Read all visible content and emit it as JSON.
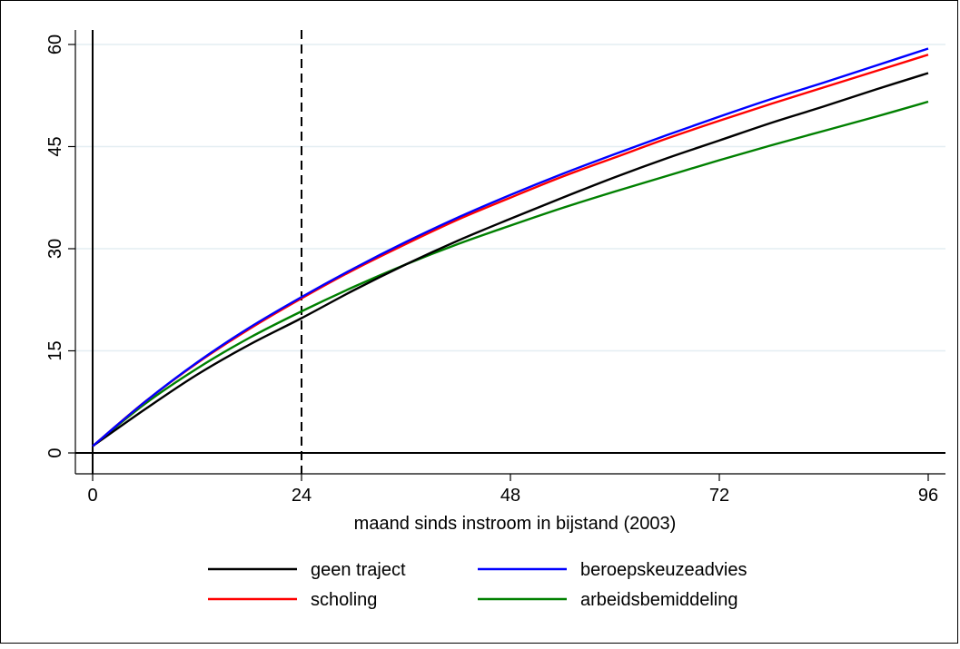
{
  "chart_data": {
    "type": "line",
    "title": "",
    "xlabel": "maand sinds instroom in bijstand (2003)",
    "ylabel": "",
    "xlim": [
      0,
      96
    ],
    "ylim": [
      0,
      60
    ],
    "x_ticks": [
      "0",
      "24",
      "48",
      "72",
      "96"
    ],
    "y_ticks": [
      "0",
      "15",
      "30",
      "45",
      "60"
    ],
    "grid": "horizontal",
    "legend_position": "bottom",
    "reference_lines": [
      {
        "axis": "x",
        "value": 24,
        "style": "dashed"
      }
    ],
    "x": [
      0,
      6,
      12,
      18,
      24,
      30,
      36,
      42,
      48,
      54,
      60,
      66,
      72,
      78,
      84,
      90,
      96
    ],
    "series": [
      {
        "name": "geen traject",
        "color": "#000000",
        "values": [
          1.0,
          6.4,
          11.5,
          15.9,
          19.8,
          23.9,
          27.7,
          31.2,
          34.4,
          37.5,
          40.5,
          43.3,
          45.9,
          48.5,
          50.9,
          53.4,
          55.8
        ]
      },
      {
        "name": "beroepskeuzeadvies",
        "color": "#0000ff",
        "values": [
          1.0,
          7.5,
          13.3,
          18.4,
          22.9,
          27.1,
          31.0,
          34.6,
          37.9,
          41.0,
          43.9,
          46.7,
          49.4,
          52.0,
          54.4,
          56.9,
          59.4
        ]
      },
      {
        "name": "scholing",
        "color": "#ff0000",
        "values": [
          1.0,
          7.5,
          13.2,
          18.2,
          22.7,
          26.9,
          30.7,
          34.3,
          37.5,
          40.6,
          43.4,
          46.2,
          48.8,
          51.3,
          53.7,
          56.1,
          58.5
        ]
      },
      {
        "name": "arbeidsbemiddeling",
        "color": "#008000",
        "values": [
          1.0,
          7.2,
          12.4,
          16.9,
          20.8,
          24.4,
          27.7,
          30.7,
          33.4,
          36.0,
          38.4,
          40.7,
          43.0,
          45.2,
          47.3,
          49.4,
          51.6
        ]
      }
    ],
    "legend_order": [
      "geen traject",
      "beroepskeuzeadvies",
      "scholing",
      "arbeidsbemiddeling"
    ]
  }
}
